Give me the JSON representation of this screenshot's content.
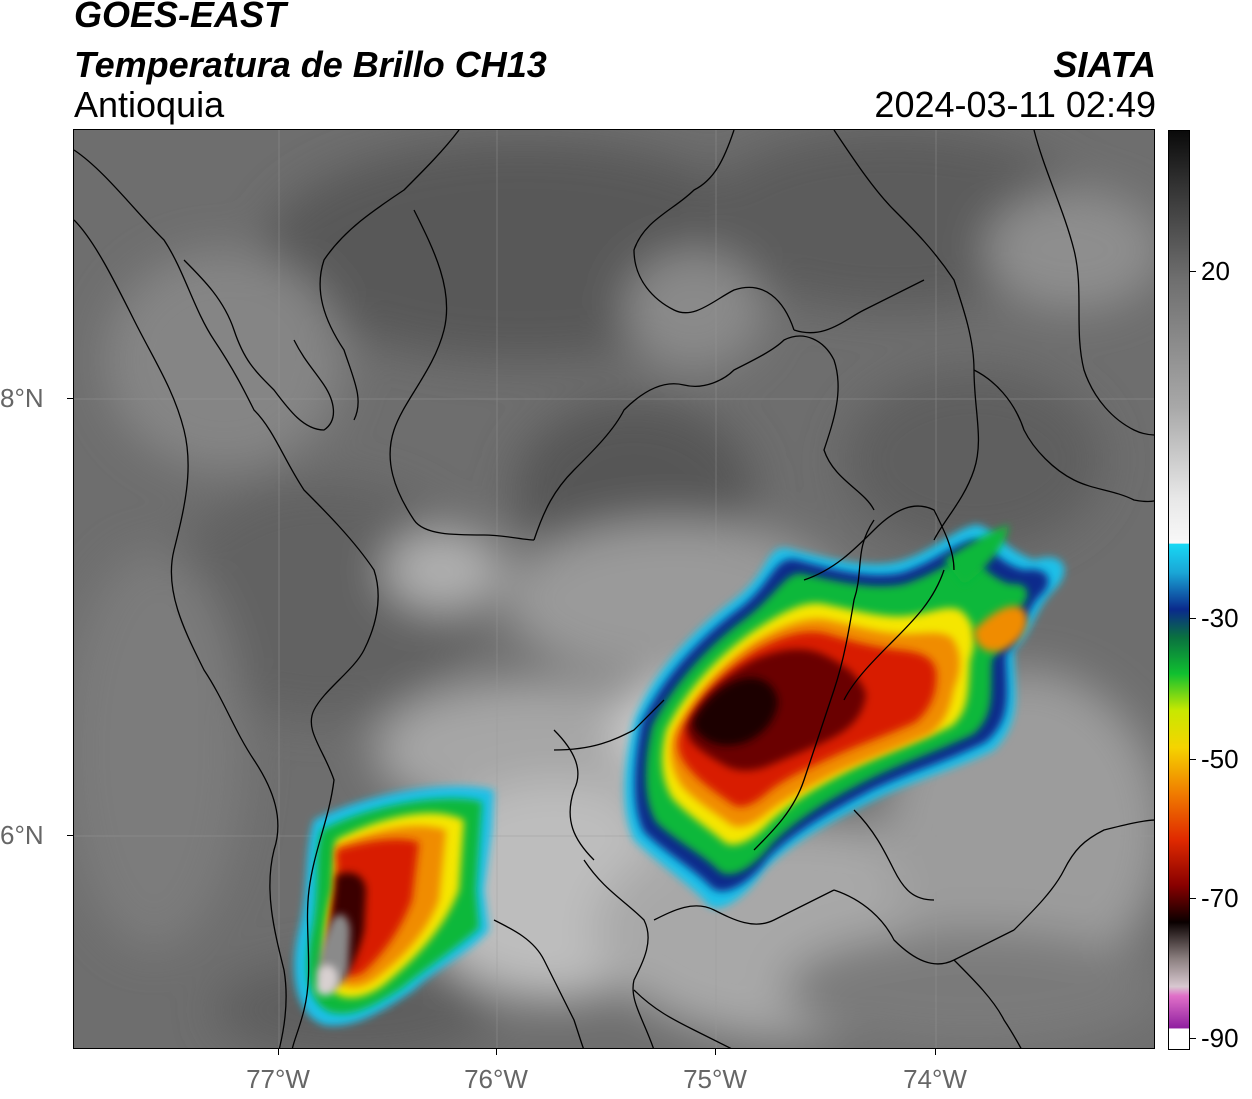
{
  "header": {
    "satellite": "GOES-EAST",
    "product": "Temperatura de Brillo CH13",
    "region": "Antioquia",
    "brand": "SIATA",
    "datetime": "2024-03-11 02:49"
  },
  "axes": {
    "x_ticks": [
      "77°W",
      "76°W",
      "75°W",
      "74°W"
    ],
    "y_ticks": [
      "8°N",
      "6°N"
    ]
  },
  "colorbar": {
    "ticks": [
      "20",
      "-30",
      "-50",
      "-70",
      "-90"
    ],
    "range": [
      -90,
      40
    ],
    "colors": {
      "warm_gray_top": "#111111",
      "gray_mid": "#7a7a7a",
      "gray_light": "#e8e8e8",
      "cyan": "#1fd3f0",
      "blue": "#0a2a8c",
      "green": "#0fb83a",
      "yellow": "#f5e600",
      "orange": "#f08c00",
      "red": "#d81a00",
      "dark_red": "#5a0000",
      "black": "#000000",
      "light_gray": "#c8c0c0",
      "pink": "#e060c0",
      "purple": "#8a1090"
    }
  }
}
